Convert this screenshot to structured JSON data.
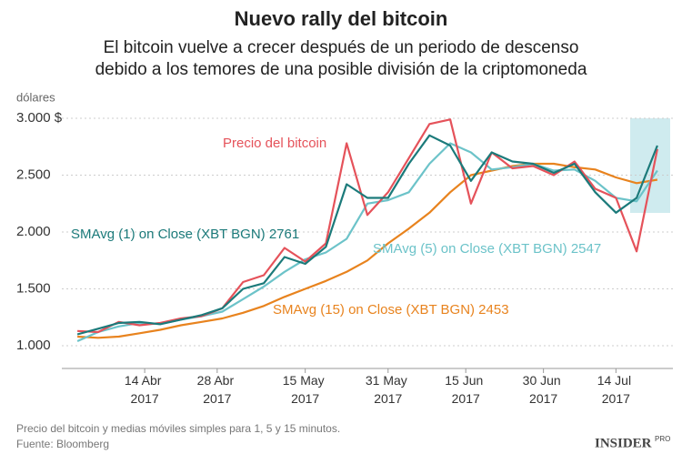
{
  "chart_data": {
    "type": "line",
    "title": "Nuevo rally del bitcoin",
    "subtitle": [
      "El bitcoin vuelve a crecer después de un periodo de descenso",
      "debido a los temores de una posible división de la criptomoneda"
    ],
    "y_label": "dólares",
    "x": [
      "2017-04-01",
      "2017-04-05",
      "2017-04-09",
      "2017-04-13",
      "2017-04-17",
      "2017-04-21",
      "2017-04-25",
      "2017-04-29",
      "2017-05-03",
      "2017-05-07",
      "2017-05-11",
      "2017-05-15",
      "2017-05-19",
      "2017-05-23",
      "2017-05-27",
      "2017-05-31",
      "2017-06-04",
      "2017-06-08",
      "2017-06-12",
      "2017-06-16",
      "2017-06-20",
      "2017-06-24",
      "2017-06-28",
      "2017-07-02",
      "2017-07-06",
      "2017-07-10",
      "2017-07-14",
      "2017-07-18",
      "2017-07-22"
    ],
    "series": [
      {
        "name": "SMAvg (15) on Close (XBT BGN) 2453",
        "color": "#e8831e",
        "values": [
          1080,
          1070,
          1080,
          1110,
          1140,
          1180,
          1210,
          1240,
          1290,
          1350,
          1430,
          1500,
          1570,
          1650,
          1750,
          1900,
          2030,
          2170,
          2350,
          2500,
          2540,
          2580,
          2600,
          2600,
          2570,
          2550,
          2480,
          2430,
          2460
        ]
      },
      {
        "name": "SMAvg (5) on Close (XBT BGN) 2547",
        "color": "#6cc3c9",
        "values": [
          1040,
          1120,
          1170,
          1200,
          1190,
          1230,
          1260,
          1300,
          1410,
          1520,
          1650,
          1760,
          1820,
          1940,
          2250,
          2280,
          2350,
          2600,
          2780,
          2700,
          2550,
          2570,
          2600,
          2540,
          2550,
          2450,
          2300,
          2270,
          2540
        ]
      },
      {
        "name": "Precio del bitcoin",
        "color": "#e5525a",
        "values": [
          1130,
          1120,
          1210,
          1180,
          1200,
          1240,
          1260,
          1330,
          1560,
          1620,
          1860,
          1740,
          1900,
          2780,
          2150,
          2350,
          2650,
          2950,
          2990,
          2250,
          2700,
          2560,
          2580,
          2500,
          2620,
          2380,
          2300,
          1830,
          2730
        ]
      },
      {
        "name": "SMAvg (1) on Close (XBT BGN) 2761",
        "color": "#1b7a7a",
        "values": [
          1100,
          1150,
          1200,
          1210,
          1190,
          1230,
          1270,
          1330,
          1500,
          1550,
          1780,
          1720,
          1870,
          2420,
          2300,
          2300,
          2600,
          2850,
          2760,
          2450,
          2700,
          2620,
          2600,
          2520,
          2600,
          2350,
          2170,
          2300,
          2760
        ]
      }
    ],
    "xlim": [
      "2017-03-29",
      "2017-07-25"
    ],
    "xticks": [
      {
        "value": "2017-04-14",
        "label": "14 Abr 2017"
      },
      {
        "value": "2017-04-28",
        "label": "28 Abr 2017"
      },
      {
        "value": "2017-05-15",
        "label": "15 May 2017"
      },
      {
        "value": "2017-05-31",
        "label": "31 May 2017"
      },
      {
        "value": "2017-06-15",
        "label": "15 Jun 2017"
      },
      {
        "value": "2017-06-30",
        "label": "30 Jun 2017"
      },
      {
        "value": "2017-07-14",
        "label": "14 Jul 2017"
      }
    ],
    "ylim": [
      800,
      3040
    ],
    "yticks": [
      {
        "value": 1000,
        "label": "1.000"
      },
      {
        "value": 1500,
        "label": "1.500"
      },
      {
        "value": 2000,
        "label": "2.000"
      },
      {
        "value": 2500,
        "label": "2.500"
      },
      {
        "value": 3000,
        "label": "3.000 $"
      }
    ],
    "grid": true,
    "note": "Precio del bitcoin y medias móviles simples para 1, 5 y 15 minutos.",
    "source": "Fuente: Bloomberg",
    "logo": "INSIDER",
    "logo_sup": "PRO"
  }
}
